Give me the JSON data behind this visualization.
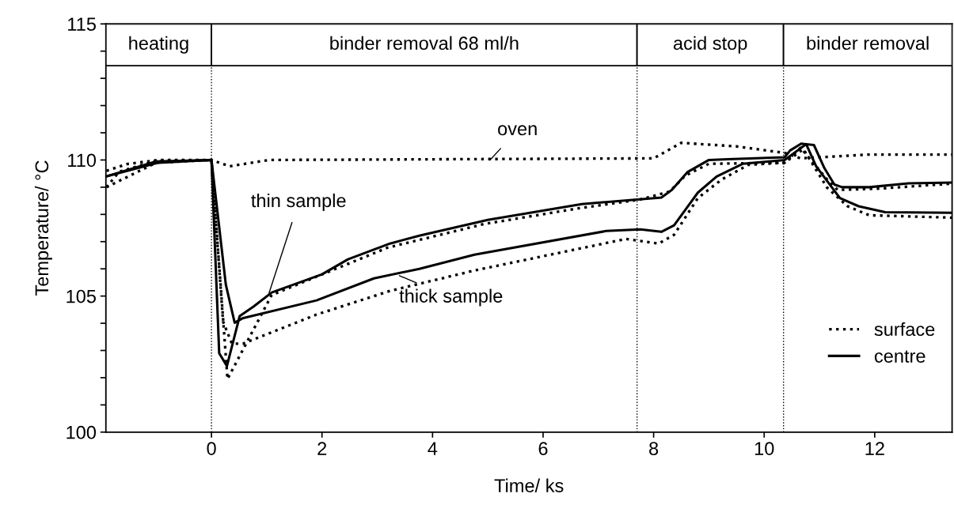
{
  "chart_data": {
    "type": "line",
    "xlabel": "Time/ ks",
    "ylabel": "Temperature/ °C",
    "xlim": [
      -1.91,
      13.4
    ],
    "ylim": [
      100,
      115
    ],
    "xticks": [
      0,
      2,
      4,
      6,
      8,
      10,
      12
    ],
    "yticks": [
      100,
      {
        "value": 101,
        "label": null
      },
      {
        "value": 102,
        "label": null
      },
      {
        "value": 103,
        "label": null
      },
      {
        "value": 104,
        "label": null
      },
      105,
      {
        "value": 106,
        "label": null
      },
      {
        "value": 107,
        "label": null
      },
      {
        "value": 108,
        "label": null
      },
      {
        "value": 109,
        "label": null
      },
      110,
      {
        "value": 111,
        "label": null
      },
      {
        "value": 112,
        "label": null
      },
      {
        "value": 113,
        "label": null
      },
      {
        "value": 114,
        "label": null
      },
      115
    ],
    "grid": false,
    "legend": "lower right",
    "series": [
      {
        "color": "#000000",
        "line_style": "dotted",
        "x": [
          -1.9,
          -1.53,
          -0.96,
          0,
          0.33,
          1.04,
          8.0,
          8.5,
          9.5,
          10.37,
          10.66,
          11.9,
          13.4
        ],
        "values": [
          109.6,
          109.85,
          110.0,
          110.0,
          109.77,
          110.0,
          110.06,
          110.63,
          110.5,
          110.26,
          110.06,
          110.2,
          110.2
        ]
      },
      {
        "name": "surface",
        "color": "#000000",
        "line_style": "dotted",
        "x": [
          -1.9,
          -1.67,
          -1.0,
          0,
          0.29,
          1.09,
          3.19,
          4.94,
          6.66,
          7.76,
          8.29,
          8.57,
          9.0,
          10.37,
          10.66,
          11.14,
          11.33,
          12.09,
          13.4
        ],
        "values": [
          109.0,
          109.57,
          109.97,
          110.0,
          101.95,
          105.04,
          106.78,
          107.65,
          108.23,
          108.55,
          108.84,
          109.42,
          109.86,
          109.9,
          110.45,
          109.28,
          108.9,
          108.95,
          109.13
        ]
      },
      {
        "name": "centre",
        "color": "#000000",
        "line_style": "solid",
        "x": [
          -1.9,
          -0.96,
          0,
          0.14,
          0.28,
          0.51,
          0.76,
          1.09,
          2.0,
          2.47,
          3.23,
          3.76,
          5.0,
          6.7,
          8.14,
          8.33,
          8.61,
          9.0,
          9.33,
          10.37,
          10.47,
          10.67,
          10.9,
          11.09,
          11.27,
          11.41,
          11.9,
          12.61,
          13.4
        ],
        "values": [
          109.4,
          109.9,
          110.0,
          102.9,
          102.43,
          104.26,
          104.61,
          105.13,
          105.8,
          106.35,
          106.93,
          107.22,
          107.8,
          108.38,
          108.62,
          108.9,
          109.55,
          110.0,
          110.03,
          110.1,
          110.35,
          110.6,
          110.55,
          109.7,
          109.1,
          109.0,
          109.0,
          109.14,
          109.17
        ]
      },
      {
        "color": "#000000",
        "line_style": "dotted",
        "x": [
          -1.9,
          -1.0,
          0,
          0.21,
          0.37,
          0.57,
          1.9,
          3.23,
          4.76,
          7.5,
          8.09,
          8.37,
          8.8,
          9.23,
          9.71,
          10.37,
          10.71,
          11.14,
          11.51,
          11.9,
          13.4
        ],
        "values": [
          109.0,
          109.9,
          110.0,
          104.06,
          103.25,
          103.25,
          104.32,
          105.19,
          105.94,
          107.1,
          106.93,
          107.25,
          108.6,
          109.28,
          109.82,
          109.9,
          110.4,
          108.98,
          108.3,
          107.97,
          107.88
        ]
      },
      {
        "color": "#000000",
        "line_style": "solid",
        "x": [
          -1.9,
          -1.0,
          0,
          0.26,
          0.42,
          0.56,
          1.9,
          2.94,
          3.76,
          4.76,
          7.14,
          7.76,
          8.14,
          8.37,
          8.8,
          9.14,
          9.61,
          10.37,
          10.76,
          10.94,
          11.37,
          11.71,
          12.19,
          13.4
        ],
        "values": [
          109.4,
          109.95,
          110.0,
          105.42,
          104.02,
          104.18,
          104.84,
          105.65,
          106.0,
          106.52,
          107.39,
          107.45,
          107.36,
          107.6,
          108.8,
          109.39,
          109.86,
          110.0,
          110.58,
          109.77,
          108.6,
          108.3,
          108.08,
          108.06
        ]
      }
    ],
    "bands": [
      {
        "axis": "x",
        "from": -1.91,
        "to": 0,
        "label": "heating",
        "color": "#ffffff"
      },
      {
        "axis": "x",
        "from": 0,
        "to": 7.7,
        "label": "binder removal 68 ml/h",
        "color": "#ffffff"
      },
      {
        "axis": "x",
        "from": 7.7,
        "to": 10.35,
        "label": "acid stop",
        "color": "#ffffff"
      },
      {
        "axis": "x",
        "from": 10.35,
        "to": 13.4,
        "label": "binder removal",
        "color": "#ffffff"
      }
    ],
    "ref_lines": [
      {
        "axis": "x",
        "value": 0,
        "line_style": "dotted"
      },
      {
        "axis": "x",
        "value": 7.7,
        "line_style": "dotted"
      },
      {
        "axis": "x",
        "value": 10.35,
        "line_style": "dotted"
      }
    ],
    "annotations": [
      {
        "text": "oven",
        "x": 5.04,
        "y": 110.0
      },
      {
        "text": "thin sample",
        "x": 1.04,
        "y": 105.1
      },
      {
        "text": "thick sample",
        "x": 3.4,
        "y": 105.75
      }
    ]
  }
}
